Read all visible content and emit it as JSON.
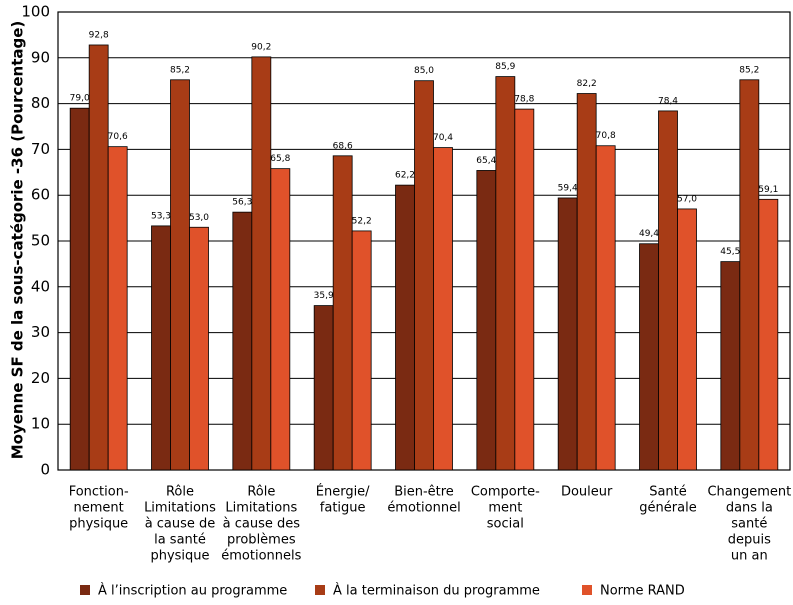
{
  "chart_data": {
    "type": "bar",
    "y_label": "Moyenne SF de la sous-catégorie -36 (Pourcentage)",
    "categories": [
      [
        "Fonction-",
        "nement",
        "physique"
      ],
      [
        "Rôle",
        "Limitations",
        "à cause de",
        "la santé",
        "physique"
      ],
      [
        "Rôle",
        "Limitations",
        "à cause des",
        "problèmes",
        "émotionnels"
      ],
      [
        "Énergie/",
        "fatigue"
      ],
      [
        "Bien-être",
        "émotionnel"
      ],
      [
        "Comporte-",
        "ment",
        "social"
      ],
      [
        "Douleur"
      ],
      [
        "Santé",
        "générale"
      ],
      [
        "Changement",
        "dans la",
        "santé",
        "depuis",
        "un an"
      ]
    ],
    "series": [
      {
        "name": "À l’inscription au programme",
        "color": "#7a2a12",
        "values": [
          79.0,
          53.3,
          56.3,
          35.9,
          62.2,
          65.4,
          59.4,
          49.4,
          45.5
        ],
        "value_labels": [
          "79,0",
          "53,3",
          "56,3",
          "35,9",
          "62,2",
          "65,4",
          "59,4",
          "49,4",
          "45,5"
        ]
      },
      {
        "name": "À la terminaison du programme",
        "color": "#a83c16",
        "values": [
          92.8,
          85.2,
          90.2,
          68.6,
          85.0,
          85.9,
          82.2,
          78.4,
          85.2
        ],
        "value_labels": [
          "92,8",
          "85,2",
          "90,2",
          "68,6",
          "85,0",
          "85,9",
          "82,2",
          "78,4",
          "85,2"
        ]
      },
      {
        "name": "Norme RAND",
        "color": "#e0522a",
        "values": [
          70.6,
          53.0,
          65.8,
          52.2,
          70.4,
          78.8,
          70.8,
          57.0,
          59.1
        ],
        "value_labels": [
          "70,6",
          "53,0",
          "65,8",
          "52,2",
          "70,4",
          "78,8",
          "70,8",
          "57,0",
          "59,1"
        ]
      }
    ],
    "ylim": [
      0,
      100
    ],
    "yticks": [
      0,
      10,
      20,
      30,
      40,
      50,
      60,
      70,
      80,
      90,
      100
    ],
    "grid": true
  }
}
